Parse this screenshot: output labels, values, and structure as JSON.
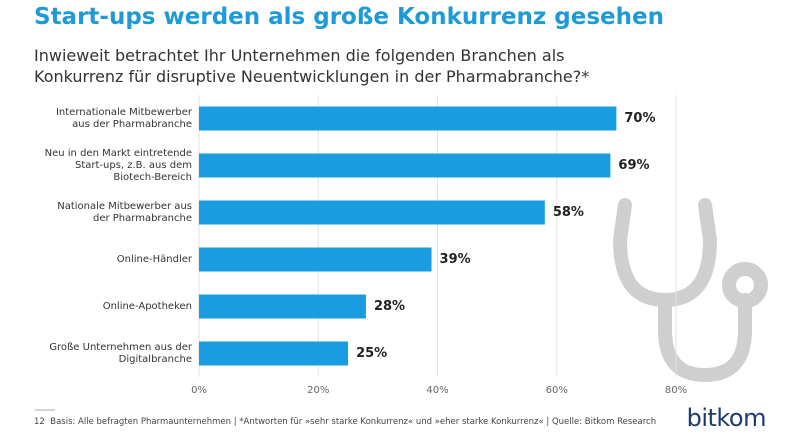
{
  "chart_data": {
    "type": "bar",
    "orientation": "horizontal",
    "title": "Start-ups werden als große Konkurrenz gesehen",
    "subtitle": "Inwieweit betrachtet Ihr Unternehmen die folgenden Branchen als Konkurrenz für disruptive Neuentwicklungen in der Pharmabranche?*",
    "categories": [
      "Internationale Mitbewerber aus der Pharmabranche",
      "Neu in den Markt eintretende Start-ups, z.B. aus dem Biotech-Bereich",
      "Nationale Mitbewerber aus der Pharmabranche",
      "Online-Händler",
      "Online-Apotheken",
      "Große Unternehmen aus der Digitalbranche"
    ],
    "values": [
      70,
      69,
      58,
      39,
      28,
      25
    ],
    "value_labels": [
      "70%",
      "69%",
      "58%",
      "39%",
      "28%",
      "25%"
    ],
    "color": "#1a9de0",
    "xlim": [
      0,
      80
    ],
    "xticks": [
      {
        "value": 0,
        "label": "0%"
      },
      {
        "value": 20,
        "label": "20%"
      },
      {
        "value": 40,
        "label": "40%"
      },
      {
        "value": 60,
        "label": "60%"
      },
      {
        "value": 80,
        "label": "80%"
      }
    ],
    "grid": true,
    "page_number": "12",
    "footnote": "Basis: Alle befragten Pharmaunternehmen | *Antworten für »sehr starke Konkurrenz« und »eher starke Konkurrenz« | Quelle: Bitkom Research",
    "logo": "bitkom"
  }
}
